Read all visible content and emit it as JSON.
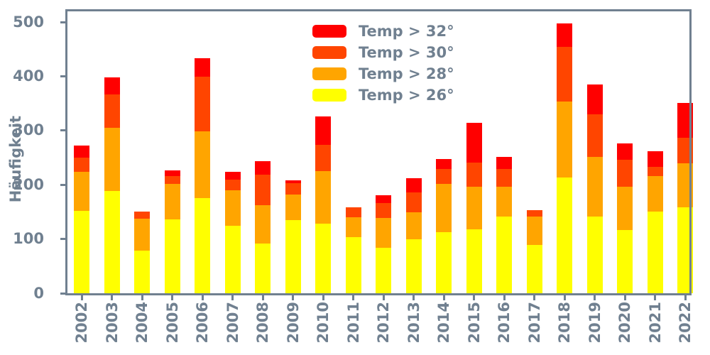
{
  "figure": {
    "background": "#ffffff"
  },
  "axis": {
    "color": "#708090",
    "tick_color": "#708090",
    "label_color": "#708090"
  },
  "chart_data": {
    "type": "bar",
    "stacked": true,
    "title": "",
    "xlabel": "",
    "ylabel": "Häufigkeit",
    "categories": [
      "2002",
      "2003",
      "2004",
      "2005",
      "2006",
      "2007",
      "2008",
      "2009",
      "2010",
      "2011",
      "2012",
      "2013",
      "2014",
      "2015",
      "2016",
      "2017",
      "2018",
      "2019",
      "2020",
      "2021",
      "2022"
    ],
    "series": [
      {
        "name": "Temp > 26°",
        "color": "#ffff00",
        "values": [
          152,
          189,
          79,
          136,
          175,
          124,
          92,
          135,
          129,
          104,
          84,
          100,
          112,
          118,
          141,
          89,
          214,
          142,
          117,
          151,
          158
        ]
      },
      {
        "name": "Temp > 28°",
        "color": "#ffa500",
        "values": [
          72,
          116,
          58,
          66,
          124,
          66,
          71,
          47,
          96,
          36,
          55,
          49,
          90,
          79,
          56,
          52,
          140,
          109,
          80,
          65,
          82
        ]
      },
      {
        "name": "Temp > 30°",
        "color": "#ff4500",
        "values": [
          26,
          62,
          13,
          14,
          100,
          20,
          56,
          21,
          49,
          18,
          28,
          37,
          27,
          44,
          32,
          12,
          100,
          79,
          49,
          17,
          47
        ]
      },
      {
        "name": "Temp > 32°",
        "color": "#ff0000",
        "values": [
          23,
          31,
          0,
          10,
          34,
          14,
          24,
          5,
          52,
          0,
          14,
          26,
          19,
          73,
          22,
          0,
          44,
          55,
          31,
          29,
          64
        ]
      }
    ],
    "totals": [
      273,
      398,
      150,
      226,
      433,
      224,
      243,
      208,
      326,
      158,
      181,
      212,
      248,
      314,
      251,
      153,
      498,
      385,
      277,
      262,
      351
    ],
    "yticks": [
      0,
      100,
      200,
      300,
      400,
      500
    ],
    "ylim": [
      0,
      520
    ],
    "grid": false,
    "legend": {
      "frame": false,
      "position": "upper-center-right",
      "entries_top_to_bottom": [
        "Temp > 32°",
        "Temp > 30°",
        "Temp > 28°",
        "Temp > 26°"
      ]
    }
  }
}
